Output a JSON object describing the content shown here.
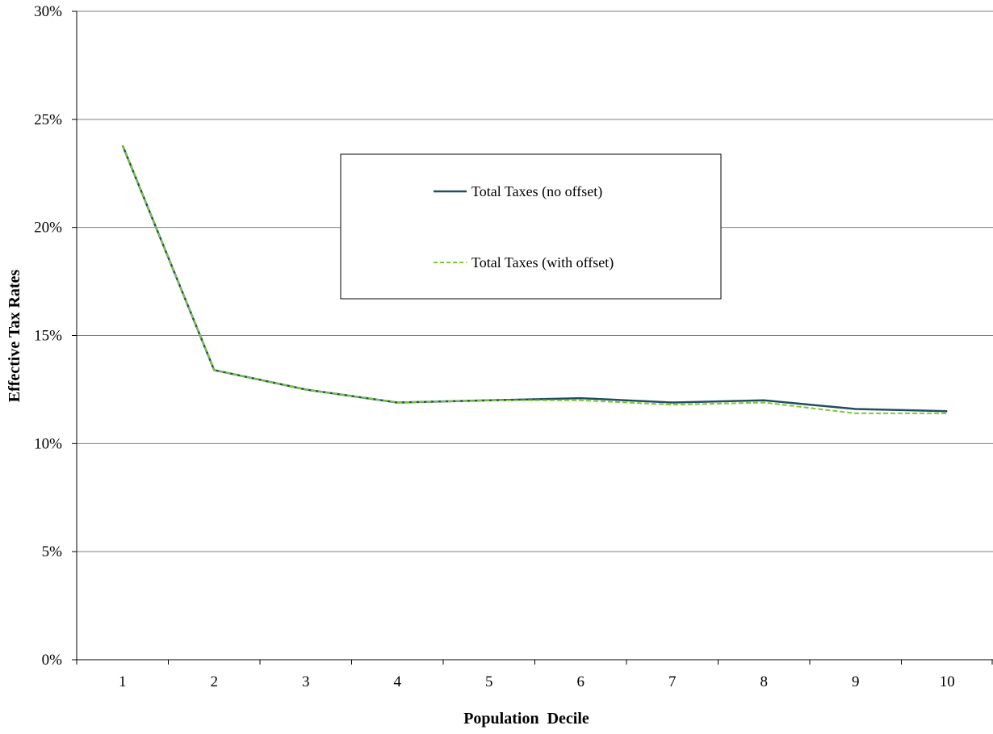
{
  "chart_data": {
    "type": "line",
    "title": "",
    "xlabel": "Population  Decile",
    "ylabel": "Effective Tax Rates",
    "categories": [
      "1",
      "2",
      "3",
      "4",
      "5",
      "6",
      "7",
      "8",
      "9",
      "10"
    ],
    "ylim": [
      0,
      30
    ],
    "ytick_labels": [
      "0%",
      "5%",
      "10%",
      "15%",
      "20%",
      "25%",
      "30%"
    ],
    "ytick_values": [
      0,
      5,
      10,
      15,
      20,
      25,
      30
    ],
    "grid": "horizontal",
    "legend_placement": "upper-center",
    "series": [
      {
        "name": "Total Taxes (no offset)",
        "color": "#1f4e5f",
        "style": "solid",
        "values": [
          23.8,
          13.4,
          12.5,
          11.9,
          12.0,
          12.1,
          11.9,
          12.0,
          11.6,
          11.5
        ]
      },
      {
        "name": "Total Taxes (with offset)",
        "color": "#7dc832",
        "style": "dashed",
        "values": [
          23.8,
          13.4,
          12.5,
          11.9,
          12.0,
          12.0,
          11.8,
          11.9,
          11.4,
          11.4
        ]
      }
    ]
  }
}
